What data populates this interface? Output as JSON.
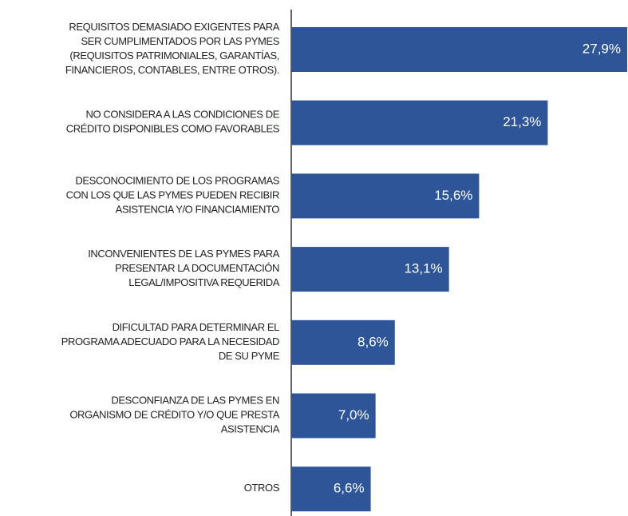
{
  "chart_data": {
    "type": "barh",
    "categories": [
      "REQUISITOS DEMASIADO EXIGENTES PARA\nSER CUMPLIMENTADOS POR LAS PYMES\n(REQUISITOS PATRIMONIALES, GARANTÍAS,\nFINANCIEROS, CONTABLES, ENTRE OTROS).",
      "NO CONSIDERA A LAS CONDICIONES DE\nCRÉDITO DISPONIBLES COMO FAVORABLES",
      "DESCONOCIMIENTO DE LOS PROGRAMAS\nCON LOS QUE LAS PYMES PUEDEN RECIBIR\nASISTENCIA Y/O FINANCIAMIENTO",
      "INCONVENIENTES DE LAS PYMES PARA\nPRESENTAR LA DOCUMENTACIÓN\nLEGAL/IMPOSITIVA REQUERIDA",
      "DIFICULTAD PARA DETERMINAR EL\nPROGRAMA ADECUADO PARA LA NECESIDAD\nDE SU PYME",
      "DESCONFIANZA DE LAS PYMES EN\nORGANISMO DE CRÉDITO Y/O QUE PRESTA\nASISTENCIA",
      "OTROS"
    ],
    "values": [
      27.9,
      21.3,
      15.6,
      13.1,
      8.6,
      7.0,
      6.6
    ],
    "value_labels": [
      "27,9%",
      "21,3%",
      "15,6%",
      "13,1%",
      "8,6%",
      "7,0%",
      "6,6%"
    ],
    "color": "#2e5597"
  }
}
